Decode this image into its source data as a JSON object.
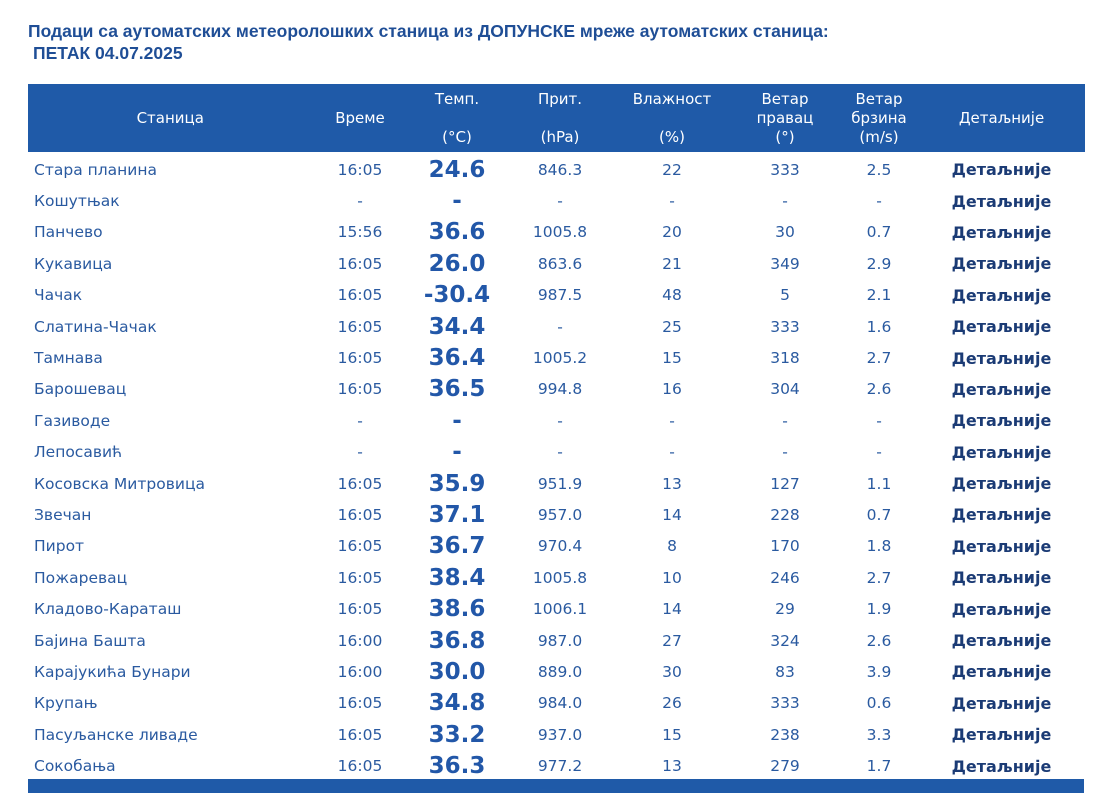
{
  "title": {
    "line1": "Подаци са аутоматских метеоролошких станица из ДОПУНСКЕ мреже аутоматских станица:",
    "line2": "ПЕТАК 04.07.2025"
  },
  "headers": {
    "station": "Станица",
    "time": "Време",
    "temp": [
      "Темп.",
      "(°C)"
    ],
    "pressure": [
      "Прит.",
      "(hPa)"
    ],
    "humidity": [
      "Влажност",
      "(%)"
    ],
    "wind_dir": [
      "Ветар",
      "правац",
      "(°)"
    ],
    "wind_speed": [
      "Ветар",
      "брзина",
      "(m/s)"
    ],
    "details": "Детаљније"
  },
  "colors": {
    "header_bg": "#1f5aa8",
    "text": "#2a5aa0",
    "link": "#1b3b75"
  },
  "rows": [
    [
      "Стара планина",
      "16:05",
      "24.6",
      "846.3",
      "22",
      "333",
      "2.5",
      "Детаљније"
    ],
    [
      "Кошутњак",
      "-",
      "-",
      "-",
      "-",
      "-",
      "-",
      "Детаљније"
    ],
    [
      "Панчево",
      "15:56",
      "36.6",
      "1005.8",
      "20",
      "30",
      "0.7",
      "Детаљније"
    ],
    [
      "Кукавица",
      "16:05",
      "26.0",
      "863.6",
      "21",
      "349",
      "2.9",
      "Детаљније"
    ],
    [
      "Чачак",
      "16:05",
      "-30.4",
      "987.5",
      "48",
      "5",
      "2.1",
      "Детаљније"
    ],
    [
      "Слатина-Чачак",
      "16:05",
      "34.4",
      "-",
      "25",
      "333",
      "1.6",
      "Детаљније"
    ],
    [
      "Тамнава",
      "16:05",
      "36.4",
      "1005.2",
      "15",
      "318",
      "2.7",
      "Детаљније"
    ],
    [
      "Барошевац",
      "16:05",
      "36.5",
      "994.8",
      "16",
      "304",
      "2.6",
      "Детаљније"
    ],
    [
      "Газиводе",
      "-",
      "-",
      "-",
      "-",
      "-",
      "-",
      "Детаљније"
    ],
    [
      "Лепосавић",
      "-",
      "-",
      "-",
      "-",
      "-",
      "-",
      "Детаљније"
    ],
    [
      "Косовска Митровица",
      "16:05",
      "35.9",
      "951.9",
      "13",
      "127",
      "1.1",
      "Детаљније"
    ],
    [
      "Звечан",
      "16:05",
      "37.1",
      "957.0",
      "14",
      "228",
      "0.7",
      "Детаљније"
    ],
    [
      "Пирот",
      "16:05",
      "36.7",
      "970.4",
      "8",
      "170",
      "1.8",
      "Детаљније"
    ],
    [
      "Пожаревац",
      "16:05",
      "38.4",
      "1005.8",
      "10",
      "246",
      "2.7",
      "Детаљније"
    ],
    [
      "Кладово-Караташ",
      "16:05",
      "38.6",
      "1006.1",
      "14",
      "29",
      "1.9",
      "Детаљније"
    ],
    [
      "Бајина Башта",
      "16:00",
      "36.8",
      "987.0",
      "27",
      "324",
      "2.6",
      "Детаљније"
    ],
    [
      "Карајукића Бунари",
      "16:00",
      "30.0",
      "889.0",
      "30",
      "83",
      "3.9",
      "Детаљније"
    ],
    [
      "Крупањ",
      "16:05",
      "34.8",
      "984.0",
      "26",
      "333",
      "0.6",
      "Детаљније"
    ],
    [
      "Пасуљанске ливаде",
      "16:05",
      "33.2",
      "937.0",
      "15",
      "238",
      "3.3",
      "Детаљније"
    ],
    [
      "Сокобања",
      "16:05",
      "36.3",
      "977.2",
      "13",
      "279",
      "1.7",
      "Детаљније"
    ]
  ]
}
